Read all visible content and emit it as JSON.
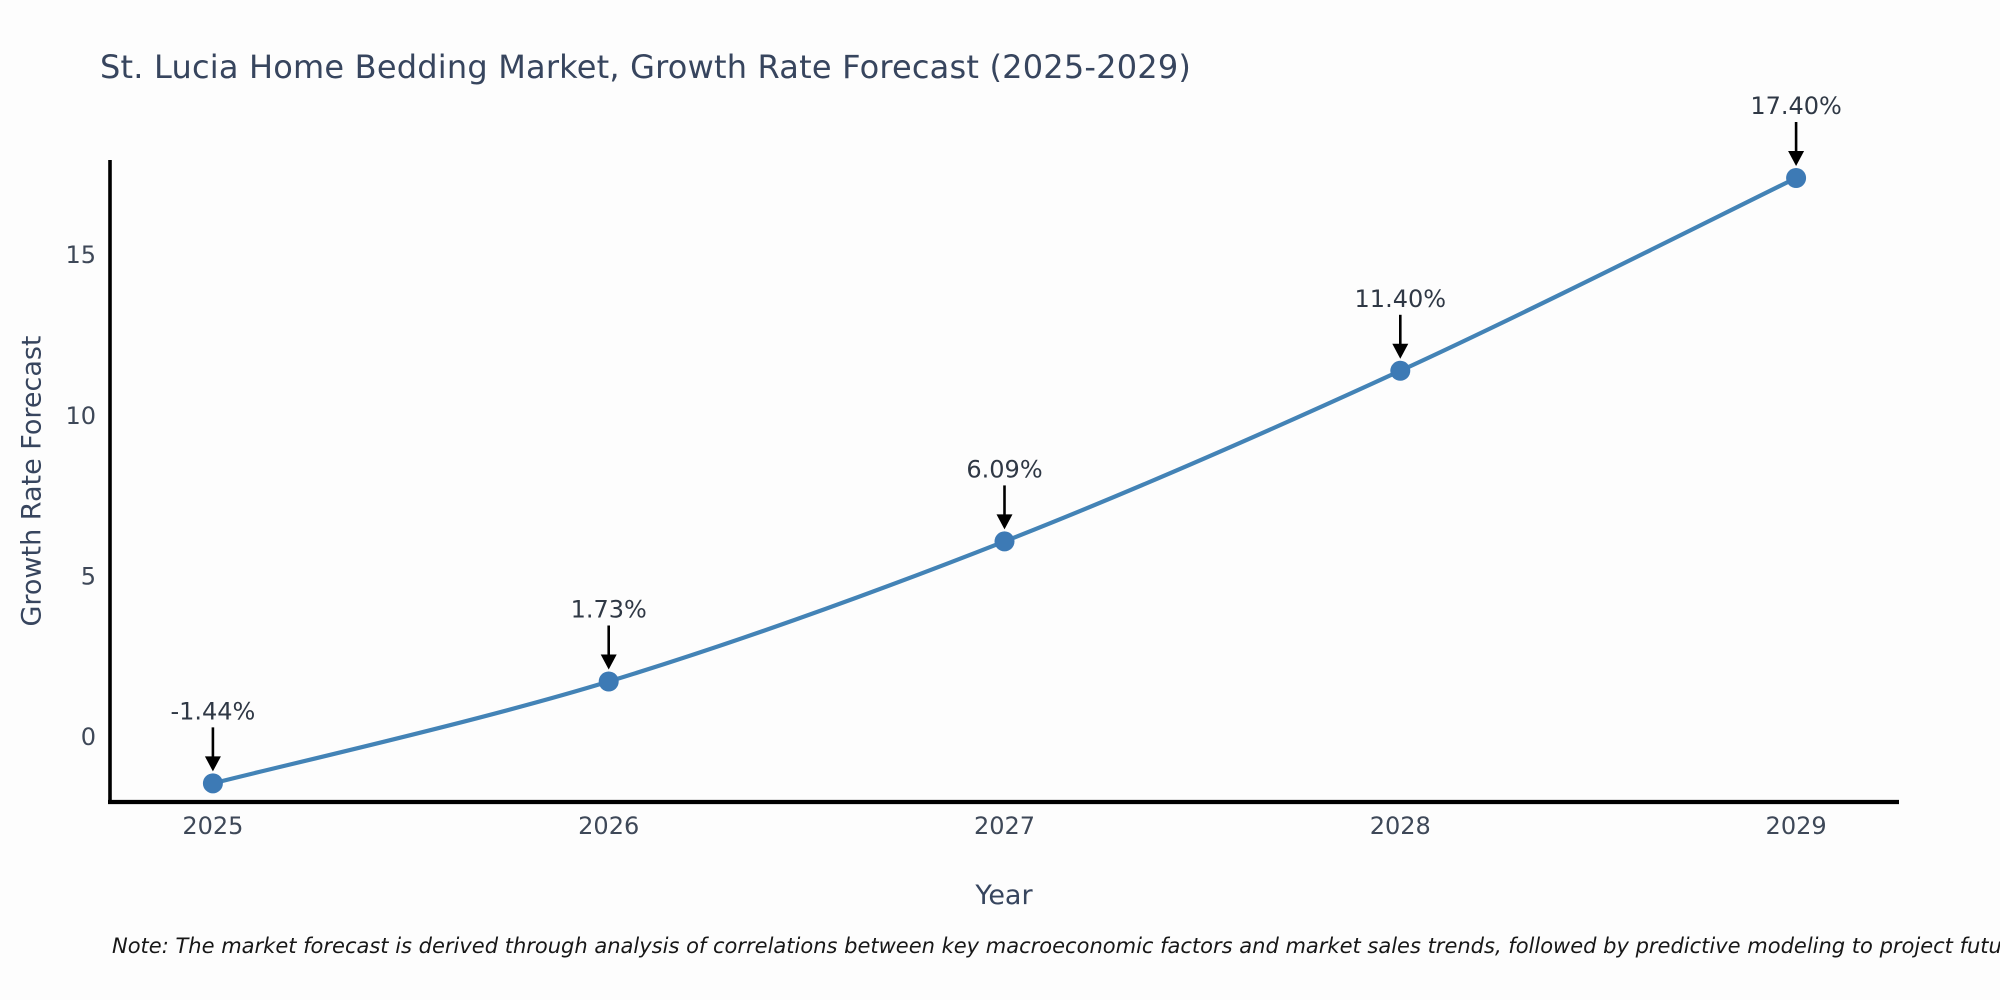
{
  "title": "St. Lucia Home Bedding Market, Growth Rate Forecast (2025-2029)",
  "note": "Note: The market forecast is derived through analysis of correlations between key macroeconomic factors and market sales trends, followed by predictive modeling to project future sales",
  "chart_data": {
    "type": "line",
    "title": "St. Lucia Home Bedding Market, Growth Rate Forecast (2025-2029)",
    "xlabel": "Year",
    "ylabel": "Growth Rate Forecast",
    "x": [
      2025,
      2026,
      2027,
      2028,
      2029
    ],
    "values": [
      -1.44,
      1.73,
      6.09,
      11.4,
      17.4
    ],
    "point_labels": [
      "-1.44%",
      "1.73%",
      "6.09%",
      "11.40%",
      "17.40%"
    ],
    "xticks": [
      2025,
      2026,
      2027,
      2028,
      2029
    ],
    "yticks": [
      0,
      5,
      10,
      15
    ],
    "xlim": [
      2024.74,
      2029.26
    ],
    "ylim": [
      -2.02,
      17.96
    ],
    "grid": false,
    "legend": null,
    "line_color": "#4383b6",
    "marker_color": "#3d7ab5",
    "annotation_arrow_color": "#000000",
    "annotation_text_color": "#2f3845",
    "axis_color": "#000000",
    "tick_label_color": "#3e4858"
  }
}
